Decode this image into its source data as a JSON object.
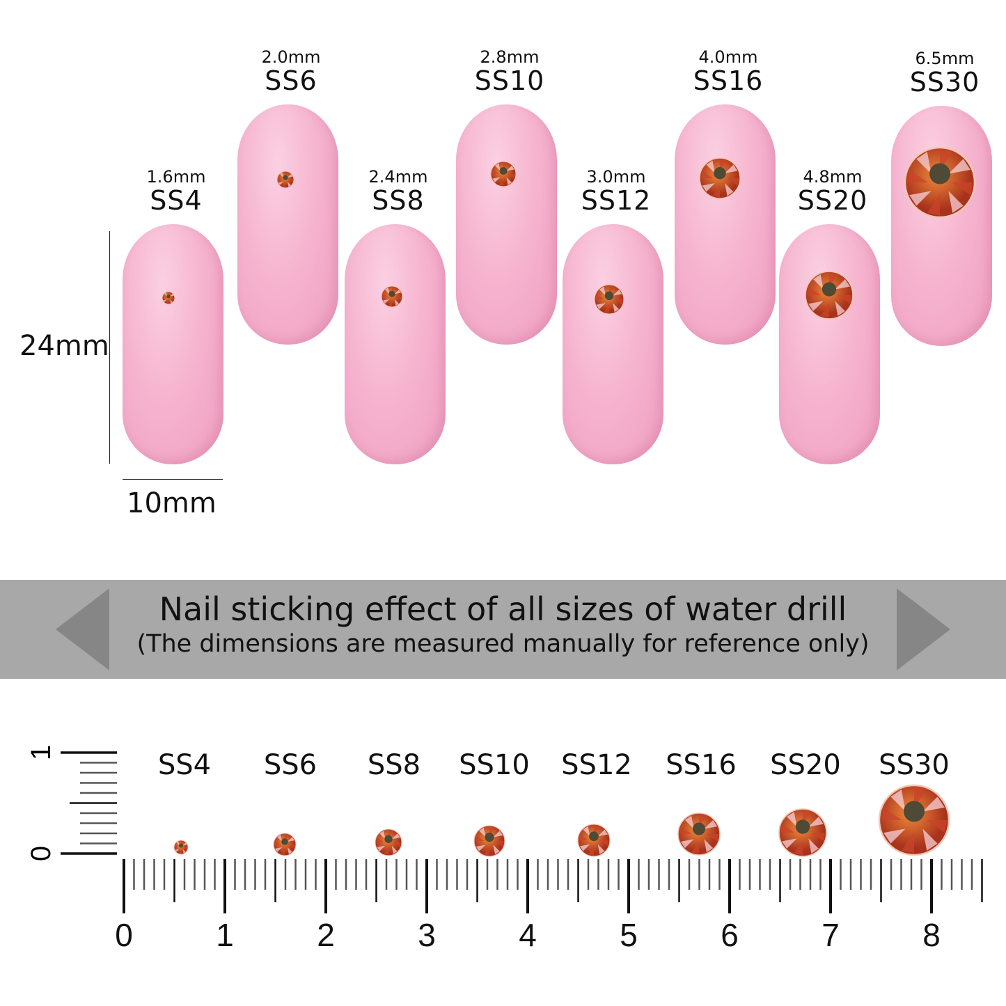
{
  "dimensions": {
    "height": "24mm",
    "width": "10mm"
  },
  "nails": [
    {
      "size": "SS4",
      "mm": "1.6mm"
    },
    {
      "size": "SS6",
      "mm": "2.0mm"
    },
    {
      "size": "SS8",
      "mm": "2.4mm"
    },
    {
      "size": "SS10",
      "mm": "2.8mm"
    },
    {
      "size": "SS12",
      "mm": "3.0mm"
    },
    {
      "size": "SS16",
      "mm": "4.0mm"
    },
    {
      "size": "SS20",
      "mm": "4.8mm"
    },
    {
      "size": "SS30",
      "mm": "6.5mm"
    }
  ],
  "banner": {
    "title": "Nail sticking effect of all sizes of water drill",
    "subtitle": "(The dimensions are measured manually for reference only)"
  },
  "ruler": {
    "labels": [
      "0",
      "1",
      "2",
      "3",
      "4",
      "5",
      "6",
      "7",
      "8"
    ],
    "vertical_labels": [
      "0",
      "1"
    ]
  },
  "colors": {
    "nail": "#f6b4cf",
    "gem": "#d2561a",
    "banner": "#a8a8a8"
  }
}
